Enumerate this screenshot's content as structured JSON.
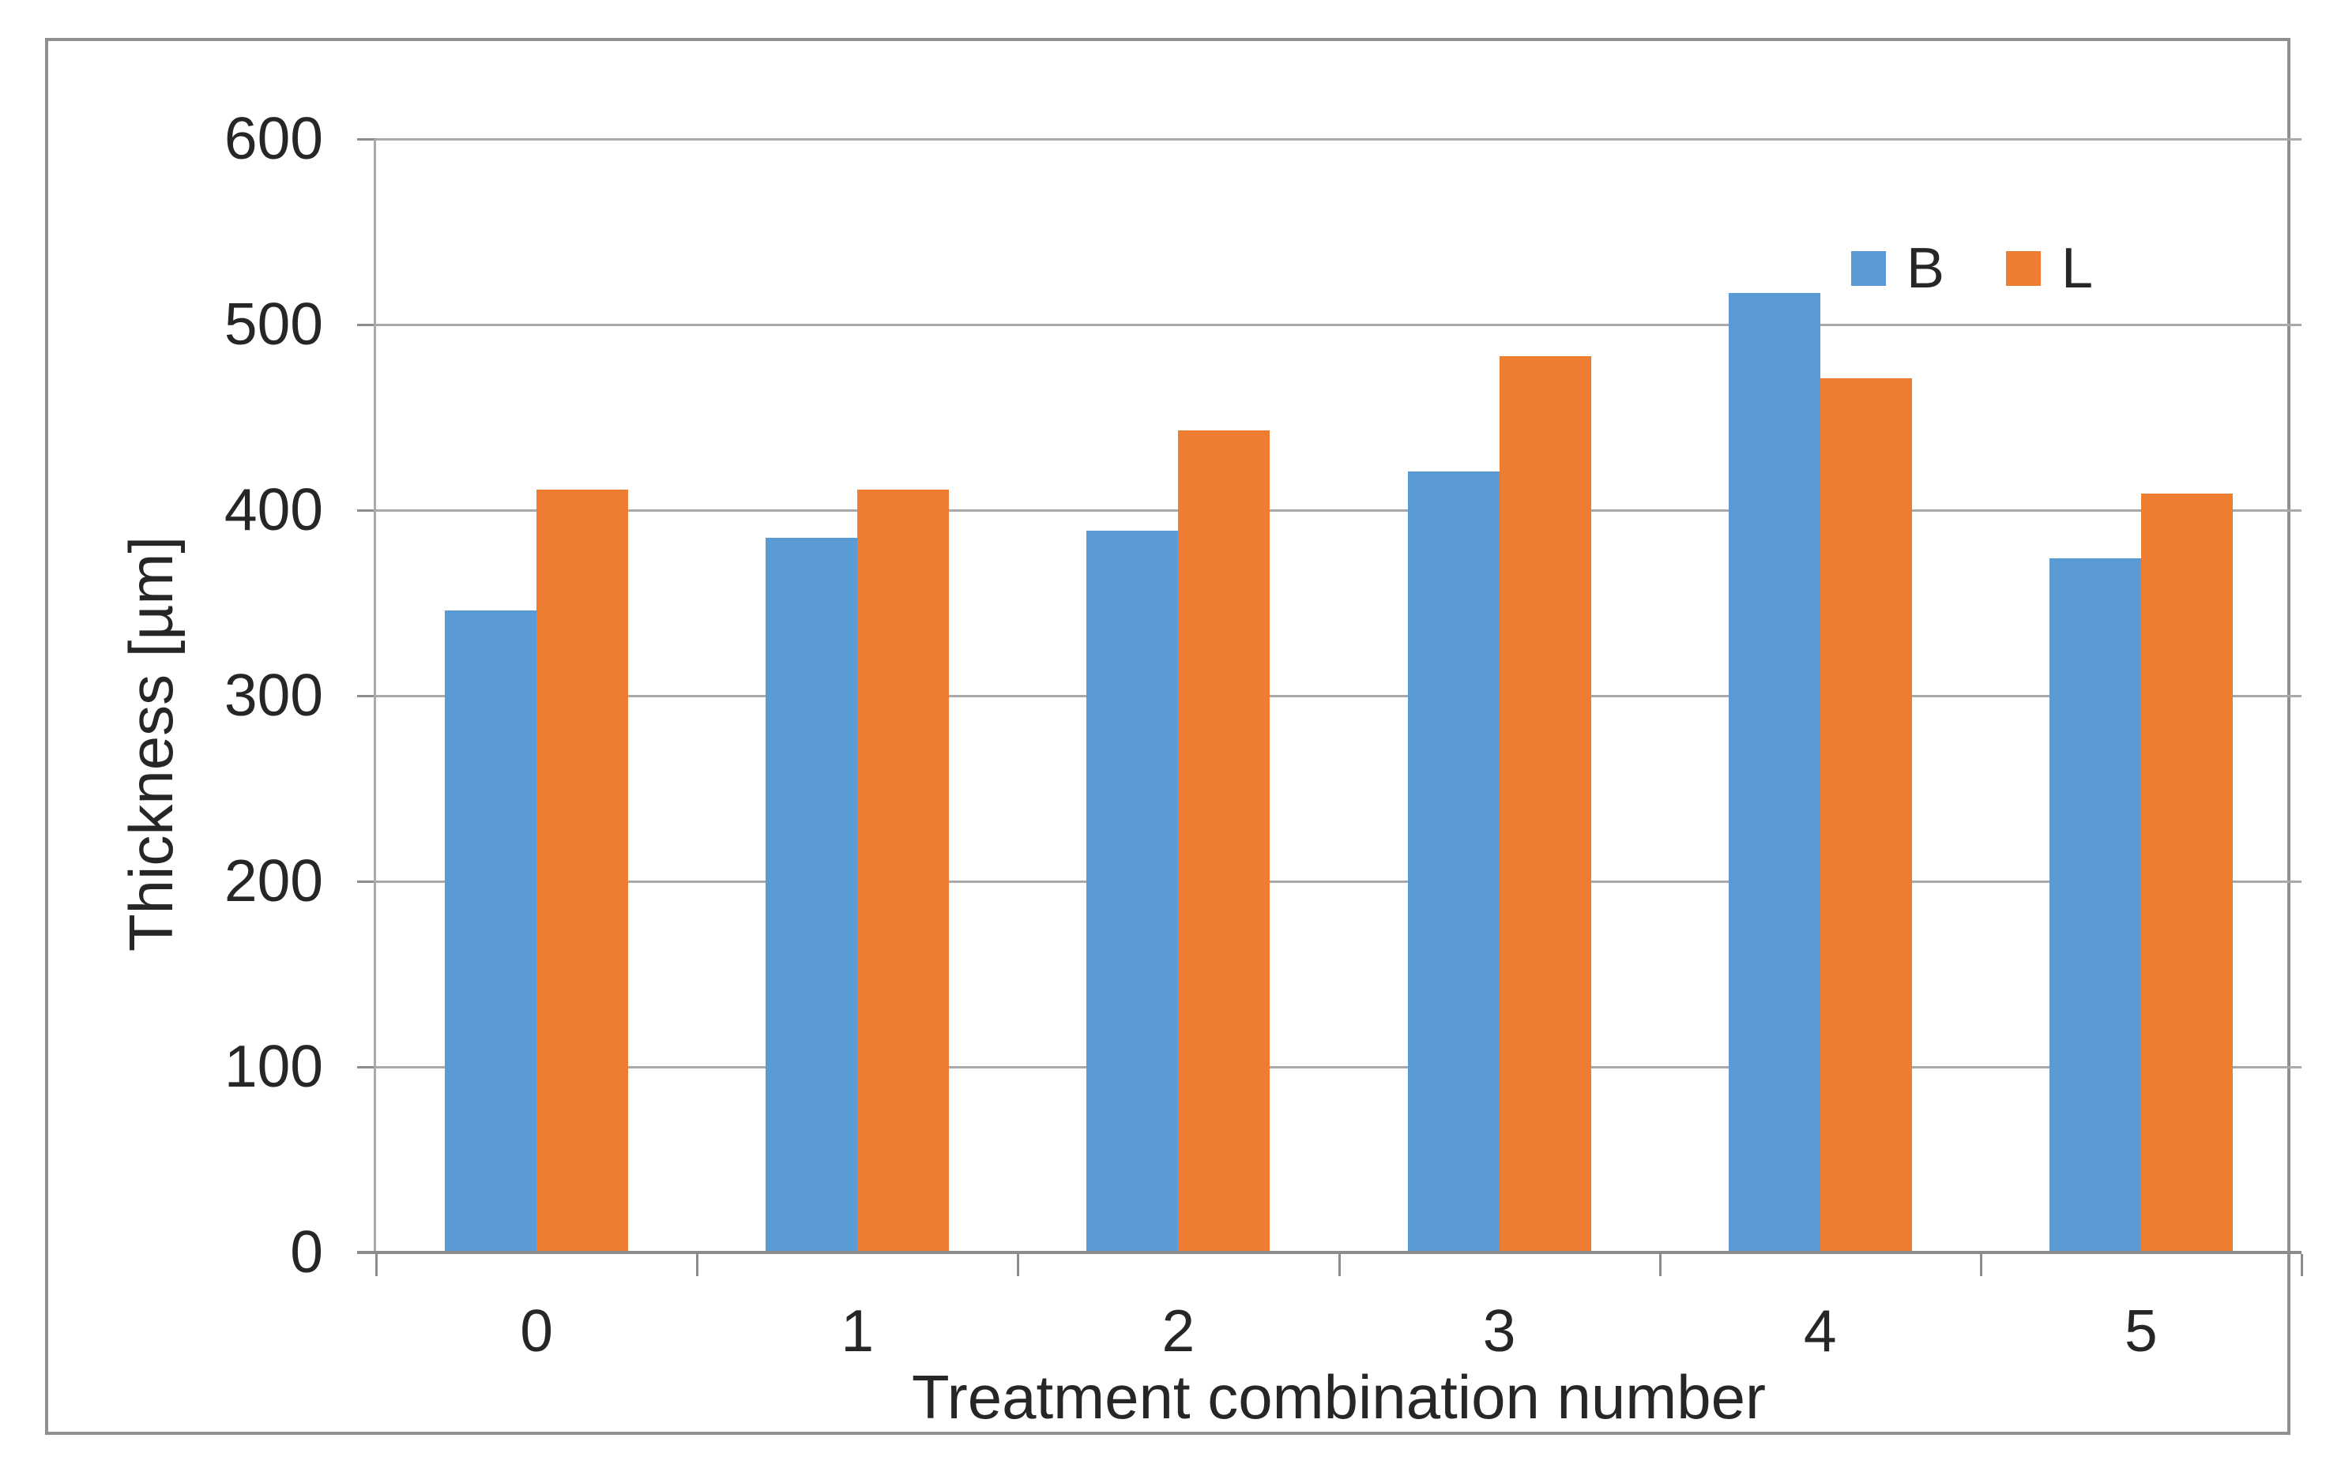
{
  "chart_data": {
    "type": "bar",
    "title": "",
    "xlabel": "Treatment combination number",
    "ylabel": "Thickness [µm]",
    "categories": [
      "0",
      "1",
      "2",
      "3",
      "4",
      "5"
    ],
    "series": [
      {
        "name": "B",
        "color": "#5B9BD5",
        "values": [
          346,
          385,
          389,
          421,
          517,
          374
        ]
      },
      {
        "name": "L",
        "color": "#ED7D31",
        "values": [
          411,
          411,
          443,
          483,
          471,
          409
        ]
      }
    ],
    "ylim": [
      0,
      600
    ],
    "ytick_interval": 100,
    "ytick_labels": [
      "0",
      "100",
      "200",
      "300",
      "400",
      "500",
      "600"
    ],
    "grid": true,
    "legend_position": "top-right",
    "colors": {
      "gridline": "#A9A9A9",
      "axis_line": "#8C8C8C",
      "frame_border": "#8F8F8F",
      "text": "#262626",
      "background": "#FFFFFF"
    }
  }
}
